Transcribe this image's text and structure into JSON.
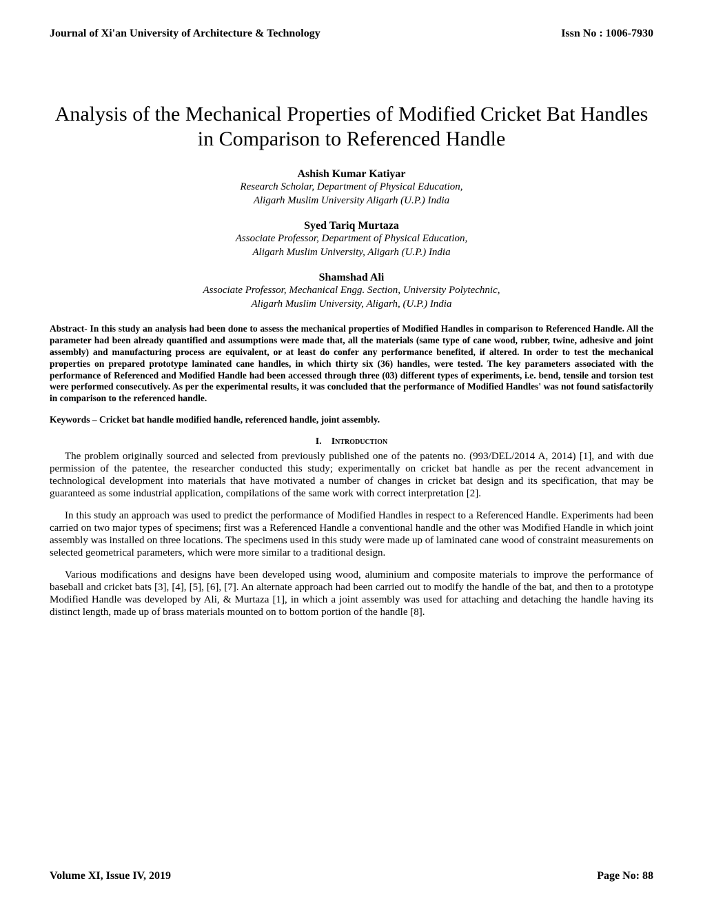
{
  "header": {
    "journal": "Journal of Xi'an University of Architecture & Technology",
    "issn": "Issn No : 1006-7930"
  },
  "title": "Analysis of the Mechanical Properties of Modified Cricket Bat Handles in Comparison to Referenced Handle",
  "authors": [
    {
      "name": "Ashish Kumar Katiyar",
      "role": "Research Scholar, Department of Physical Education,",
      "institution": "Aligarh Muslim University Aligarh (U.P.) India"
    },
    {
      "name": "Syed Tariq Murtaza",
      "role": "Associate Professor, Department of Physical Education,",
      "institution": "Aligarh Muslim University, Aligarh (U.P.) India"
    },
    {
      "name": "Shamshad Ali",
      "role": "Associate Professor, Mechanical Engg. Section, University Polytechnic,",
      "institution": "Aligarh Muslim University, Aligarh, (U.P.) India"
    }
  ],
  "abstract": "Abstract-   In this study an analysis had been done to assess the mechanical properties of Modified Handles in comparison to Referenced Handle. All the parameter had been already quantified and assumptions were made that, all the materials (same type of cane wood, rubber, twine, adhesive and joint assembly) and manufacturing process are equivalent, or at least do confer any performance benefited, if altered. In order to test the mechanical properties on prepared prototype laminated cane handles, in which thirty six (36) handles, were tested. The key parameters associated with the performance of Referenced and Modified Handle had been accessed through three (03) different types of experiments, i.e. bend, tensile and torsion test were performed consecutively. As per the experimental results, it was concluded that the performance of Modified Handles' was not found satisfactorily in comparison to the referenced handle.",
  "keywords": "Keywords – Cricket bat handle modified handle, referenced handle, joint assembly.",
  "section": {
    "number": "I.",
    "title": "Introduction"
  },
  "paragraphs": [
    "The problem originally sourced and selected from previously published one of the patents no. (993/DEL/2014 A, 2014) [1], and with due permission of the patentee, the researcher conducted this study; experimentally on cricket bat handle as per the recent advancement in technological development into materials that have motivated a number of changes in cricket bat design and its specification, that may be guaranteed as some industrial application, compilations of the same work with correct interpretation [2].",
    "In this study an approach was used to predict the performance of Modified Handles in respect to a Referenced Handle. Experiments had been carried on two major types of specimens; first was a Referenced Handle a conventional handle and the other was Modified Handle in which joint assembly was installed on three locations. The specimens used in this study were made up of laminated cane wood of constraint measurements on selected geometrical parameters, which were more similar to a traditional design.",
    "Various modifications and designs have been developed using wood, aluminium and composite materials to improve the performance of baseball and cricket bats [3], [4], [5], [6], [7]. An alternate approach had been carried out to modify the handle of the bat, and then to a prototype Modified Handle was developed by Ali, & Murtaza [1], in which a joint assembly was used for attaching and detaching the handle having its distinct length, made up of brass materials mounted on to bottom portion of the handle [8]."
  ],
  "footer": {
    "volume": "Volume XI, Issue IV, 2019",
    "page": "Page No: 88"
  }
}
